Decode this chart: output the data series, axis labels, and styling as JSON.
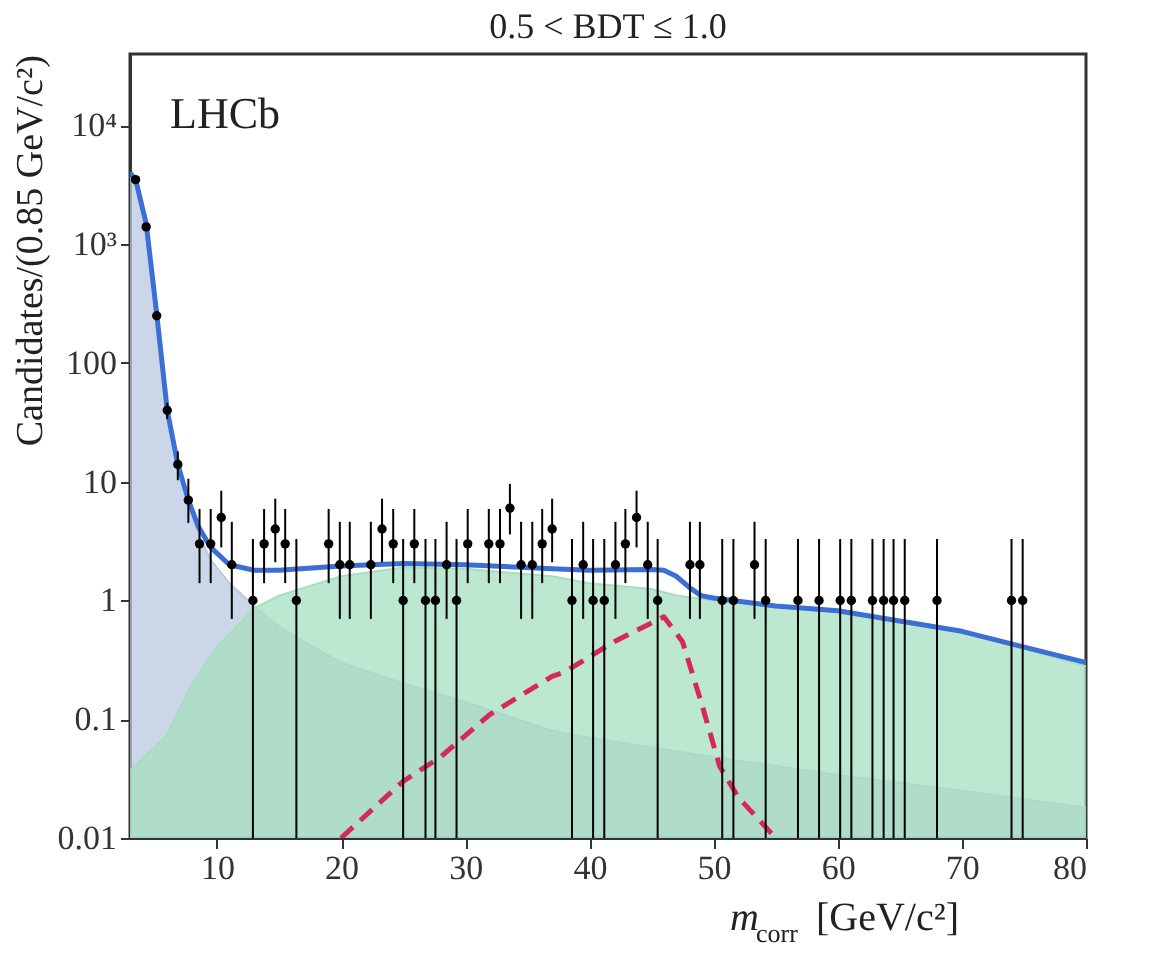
{
  "chart_data": {
    "type": "scatter",
    "title": "0.5 < BDT ≤ 1.0",
    "xlabel": "m$_{corr}$ [GeV/c²]",
    "ylabel": "Candidates/(0.85 GeV/c²)",
    "annotations": [
      "LHCb"
    ],
    "xlim": [
      3,
      80
    ],
    "xticks": [
      10,
      20,
      30,
      40,
      50,
      60,
      70,
      80
    ],
    "ylim": [
      0.01,
      40000
    ],
    "yticks": [
      0.01,
      0.1,
      1,
      10,
      100,
      {
        "value": 1000,
        "label": "10³"
      },
      {
        "value": 10000,
        "label": "10⁴"
      }
    ],
    "log": "y",
    "grid": false,
    "series": [
      {
        "type": "area",
        "color": "#b9c9e0",
        "x": [
          3,
          3.45,
          4.3,
          5.15,
          6.0,
          6.85,
          7.7,
          8.5,
          9.5,
          11,
          13,
          15,
          17,
          20,
          25,
          30,
          37,
          40,
          50,
          60,
          70,
          80
        ],
        "values": [
          4000,
          3500,
          1400,
          250,
          40,
          13.5,
          6.5,
          3.6,
          2.2,
          1.4,
          0.9,
          0.6,
          0.45,
          0.3,
          0.2,
          0.14,
          0.08,
          0.07,
          0.048,
          0.034,
          0.025,
          0.018
        ]
      },
      {
        "type": "area",
        "color": "#a6dfc0",
        "x": [
          3,
          6,
          8,
          10,
          13,
          15,
          20,
          25,
          30,
          37,
          40,
          45,
          47,
          50,
          60,
          70,
          80
        ],
        "values": [
          0.037,
          0.074,
          0.2,
          0.41,
          0.86,
          1.1,
          1.6,
          1.9,
          1.85,
          1.6,
          1.4,
          1.25,
          1.1,
          1.0,
          0.8,
          0.54,
          0.28
        ]
      },
      {
        "type": "line",
        "color": "#d42a55",
        "line_style": "dashed",
        "x": [
          20,
          25,
          28,
          32,
          37,
          38,
          42,
          46,
          47.5,
          49,
          50.5,
          52,
          55
        ],
        "values": [
          0.01,
          0.03,
          0.048,
          0.11,
          0.23,
          0.25,
          0.45,
          0.73,
          0.45,
          0.14,
          0.04,
          0.022,
          0.01
        ]
      },
      {
        "type": "line",
        "color": "#3b6fd6",
        "line_style": "solid",
        "x": [
          3,
          3.45,
          4.3,
          5.15,
          6.0,
          6.85,
          7.7,
          8.5,
          9.5,
          11,
          13,
          15,
          20,
          25,
          30,
          37,
          40,
          45,
          46,
          47,
          48,
          49,
          50,
          55,
          60,
          70,
          80
        ],
        "values": [
          4000,
          3500,
          1500,
          260,
          40,
          14,
          7,
          4.2,
          2.8,
          2.0,
          1.8,
          1.8,
          1.95,
          2.05,
          2.0,
          1.85,
          1.8,
          1.82,
          1.8,
          1.6,
          1.3,
          1.1,
          1.05,
          0.9,
          0.82,
          0.55,
          0.3
        ]
      },
      {
        "color": "#000000",
        "marker": "circle",
        "x": [
          3.45,
          4.3,
          5.15,
          6.0,
          6.85,
          7.7,
          8.6,
          9.5,
          10.35,
          11.2,
          12.9,
          13.8,
          14.7,
          15.5,
          16.4,
          19.0,
          19.9,
          20.7,
          22.4,
          23.3,
          24.2,
          25.0,
          25.9,
          26.8,
          27.6,
          28.5,
          29.3,
          30.2,
          31.9,
          32.8,
          33.6,
          34.5,
          35.4,
          36.2,
          37.0,
          38.6,
          39.5,
          40.3,
          41.2,
          42.1,
          42.9,
          43.8,
          44.7,
          45.5,
          48.1,
          48.9,
          50.7,
          51.6,
          53.3,
          54.2,
          56.8,
          58.5,
          60.2,
          61.1,
          62.8,
          63.7,
          64.5,
          65.4,
          68.0,
          74.0,
          74.9
        ],
        "values": [
          3500,
          1400,
          250,
          40,
          14,
          7,
          3,
          3,
          5,
          2,
          1,
          3,
          4,
          3,
          1,
          3,
          2,
          2,
          2,
          4,
          3,
          1,
          3,
          1,
          1,
          2,
          1,
          3,
          3,
          3,
          6,
          2,
          2,
          3,
          4,
          1,
          2,
          1,
          1,
          2,
          3,
          5,
          2,
          1,
          2,
          2,
          1,
          1,
          2,
          1,
          1,
          1,
          1,
          1,
          1,
          1,
          1,
          1,
          1,
          1,
          1
        ],
        "errors": [
          [
            3441,
            3559
          ],
          [
            1363,
            1437
          ],
          [
            234,
            266
          ],
          [
            33.7,
            46.3
          ],
          [
            10.3,
            18.0
          ],
          [
            4.5,
            10.6
          ],
          [
            1.4,
            5.9
          ],
          [
            1.4,
            5.9
          ],
          [
            2.8,
            8.4
          ],
          [
            0.7,
            4.6
          ],
          [
            0.01,
            3.3
          ],
          [
            1.4,
            5.9
          ],
          [
            2.1,
            7.2
          ],
          [
            1.4,
            5.9
          ],
          [
            0.01,
            3.3
          ],
          [
            1.4,
            5.9
          ],
          [
            0.7,
            4.6
          ],
          [
            0.7,
            4.6
          ],
          [
            0.7,
            4.6
          ],
          [
            2.1,
            7.2
          ],
          [
            1.4,
            5.9
          ],
          [
            0.01,
            3.3
          ],
          [
            1.4,
            5.9
          ],
          [
            0.01,
            3.3
          ],
          [
            0.01,
            3.3
          ],
          [
            0.7,
            4.6
          ],
          [
            0.01,
            3.3
          ],
          [
            1.4,
            5.9
          ],
          [
            1.4,
            5.9
          ],
          [
            1.4,
            5.9
          ],
          [
            3.6,
            9.6
          ],
          [
            0.7,
            4.6
          ],
          [
            0.7,
            4.6
          ],
          [
            1.4,
            5.9
          ],
          [
            2.1,
            7.2
          ],
          [
            0.01,
            3.3
          ],
          [
            0.7,
            4.6
          ],
          [
            0.01,
            3.3
          ],
          [
            0.01,
            3.3
          ],
          [
            0.7,
            4.6
          ],
          [
            1.4,
            5.9
          ],
          [
            2.8,
            8.4
          ],
          [
            0.7,
            4.6
          ],
          [
            0.01,
            3.3
          ],
          [
            0.7,
            4.6
          ],
          [
            0.7,
            4.6
          ],
          [
            0.01,
            3.3
          ],
          [
            0.01,
            3.3
          ],
          [
            0.7,
            4.6
          ],
          [
            0.01,
            3.3
          ],
          [
            0.01,
            3.3
          ],
          [
            0.01,
            3.3
          ],
          [
            0.01,
            3.3
          ],
          [
            0.01,
            3.3
          ],
          [
            0.01,
            3.3
          ],
          [
            0.01,
            3.3
          ],
          [
            0.01,
            3.3
          ],
          [
            0.01,
            3.3
          ],
          [
            0.01,
            3.3
          ],
          [
            0.01,
            3.3
          ],
          [
            0.01,
            3.3
          ]
        ]
      }
    ]
  }
}
